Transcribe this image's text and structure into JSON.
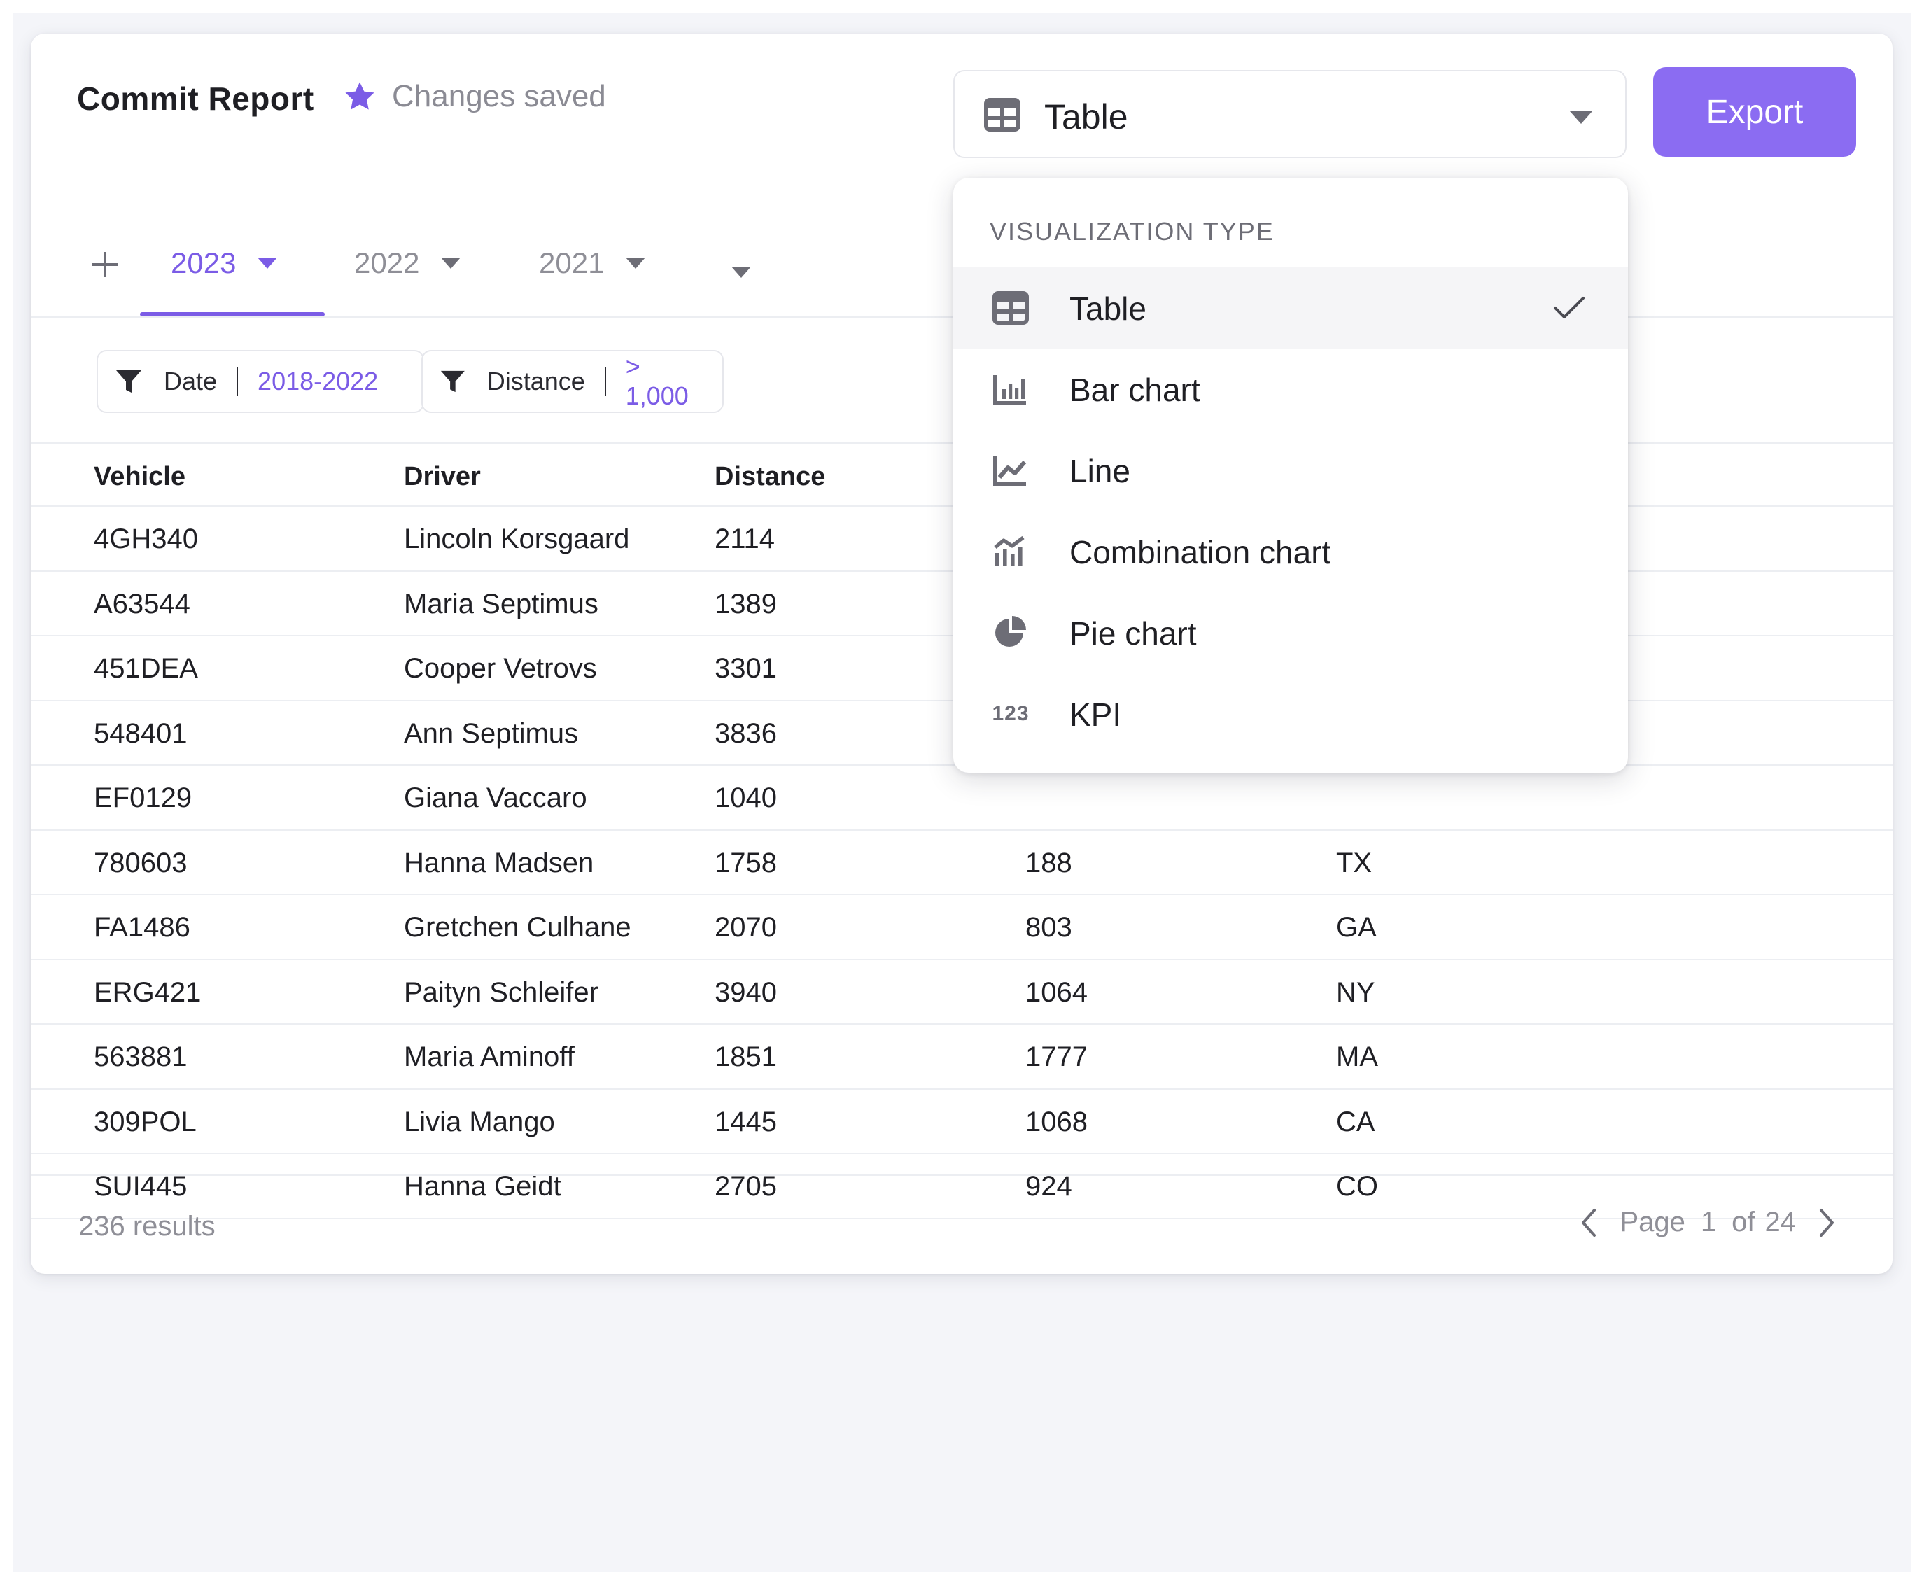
{
  "header": {
    "title": "Commit Report",
    "saved_status": "Changes saved",
    "visualization_selected": "Table",
    "export_label": "Export",
    "accent_color": "#8b6cf2"
  },
  "tabs": {
    "items": [
      {
        "label": "2023",
        "active": true
      },
      {
        "label": "2022",
        "active": false
      },
      {
        "label": "2021",
        "active": false
      },
      {
        "label": "",
        "active": false
      }
    ]
  },
  "filters": [
    {
      "key": "Date",
      "value": "2018-2022"
    },
    {
      "key": "Distance",
      "value": "> 1,000"
    }
  ],
  "table": {
    "columns": [
      "Vehicle",
      "Driver",
      "Distance",
      "",
      ""
    ],
    "rows": [
      [
        "4GH340",
        "Lincoln Korsgaard",
        "2114",
        "",
        ""
      ],
      [
        "A63544",
        "Maria Septimus",
        "1389",
        "",
        ""
      ],
      [
        "451DEA",
        "Cooper Vetrovs",
        "3301",
        "",
        ""
      ],
      [
        "548401",
        "Ann Septimus",
        "3836",
        "",
        ""
      ],
      [
        "EF0129",
        "Giana Vaccaro",
        "1040",
        "",
        ""
      ],
      [
        "780603",
        "Hanna Madsen",
        "1758",
        "188",
        "TX"
      ],
      [
        "FA1486",
        "Gretchen Culhane",
        "2070",
        "803",
        "GA"
      ],
      [
        "ERG421",
        "Paityn Schleifer",
        "3940",
        "1064",
        "NY"
      ],
      [
        "563881",
        "Maria Aminoff",
        "1851",
        "1777",
        "MA"
      ],
      [
        "309POL",
        "Livia Mango",
        "1445",
        "1068",
        "CA"
      ],
      [
        "SUI445",
        "Hanna Geidt",
        "2705",
        "924",
        "CO"
      ]
    ]
  },
  "footer": {
    "results": "236 results",
    "page_word": "Page",
    "page_current": "1",
    "page_of": "of",
    "page_total": "24"
  },
  "menu": {
    "header": "VISUALIZATION TYPE",
    "items": [
      {
        "label": "Table",
        "icon": "table-icon",
        "selected": true
      },
      {
        "label": "Bar chart",
        "icon": "bar-chart-icon",
        "selected": false
      },
      {
        "label": "Line",
        "icon": "line-chart-icon",
        "selected": false
      },
      {
        "label": "Combination chart",
        "icon": "combination-chart-icon",
        "selected": false
      },
      {
        "label": "Pie chart",
        "icon": "pie-chart-icon",
        "selected": false
      },
      {
        "label": "KPI",
        "icon": "kpi-icon",
        "icon_text": "123",
        "selected": false
      }
    ]
  }
}
